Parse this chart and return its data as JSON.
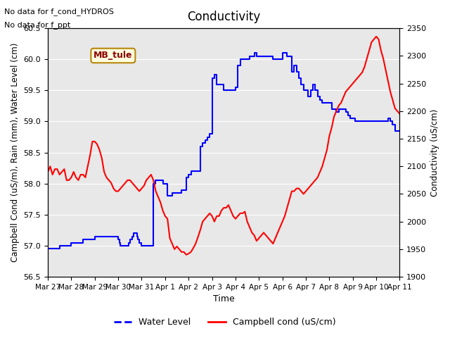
{
  "title": "Conductivity",
  "xlabel": "Time",
  "ylabel_left": "Campbell Cond (uS/m), Rain (mm), Water Level (cm)",
  "ylabel_right": "Conductivity (uS/cm)",
  "ylim_left": [
    56.5,
    60.5
  ],
  "ylim_right": [
    1900,
    2350
  ],
  "annotations": [
    "No data for f_cond_HYDROS",
    "No data for f_ppt"
  ],
  "box_label": "MB_tule",
  "legend_entries": [
    "Water Level",
    "Campbell cond (uS/cm)"
  ],
  "legend_colors": [
    "blue",
    "red"
  ],
  "xtick_labels": [
    "Mar 27",
    "Mar 28",
    "Mar 29",
    "Mar 30",
    "Mar 31",
    "Apr 1",
    "Apr 2",
    "Apr 3",
    "Apr 4",
    "Apr 5",
    "Apr 6",
    "Apr 7",
    "Apr 8",
    "Apr 9",
    "Apr 10",
    "Apr 11"
  ],
  "background_color": "#e8e8e8",
  "water_level_x": [
    0,
    0.5,
    1,
    1.5,
    2,
    2.5,
    2.8,
    3.0,
    3.05,
    3.1,
    3.15,
    3.2,
    3.4,
    3.45,
    3.5,
    3.55,
    3.6,
    3.65,
    3.7,
    3.75,
    3.8,
    3.85,
    3.9,
    4.0,
    4.1,
    4.2,
    4.3,
    4.5,
    4.6,
    4.7,
    4.8,
    4.9,
    5.0,
    5.1,
    5.2,
    5.3,
    5.4,
    5.5,
    5.6,
    5.7,
    5.8,
    5.9,
    6.0,
    6.1,
    6.2,
    6.3,
    6.4,
    6.5,
    6.6,
    6.7,
    6.8,
    6.9,
    7.0,
    7.1,
    7.2,
    7.3,
    7.4,
    7.5,
    7.6,
    7.7,
    7.8,
    7.9,
    8.0,
    8.1,
    8.2,
    8.3,
    8.4,
    8.5,
    8.6,
    8.7,
    8.8,
    8.9,
    9.0,
    9.1,
    9.2,
    9.3,
    9.4,
    9.5,
    9.6,
    9.7,
    9.8,
    9.9,
    10.0,
    10.1,
    10.2,
    10.3,
    10.4,
    10.5,
    10.6,
    10.7,
    10.8,
    10.9,
    11.0,
    11.1,
    11.2,
    11.3,
    11.4,
    11.5,
    11.6,
    11.7,
    11.8,
    11.9,
    12.0,
    12.1,
    12.2,
    12.3,
    12.4,
    12.5,
    12.6,
    12.7,
    12.8,
    12.9,
    13.0,
    13.1,
    13.2,
    13.3,
    13.4,
    13.5,
    13.6,
    13.7,
    13.8,
    13.9,
    14.0,
    14.1,
    14.2,
    14.3,
    14.4,
    14.5,
    14.6,
    14.7,
    14.8,
    14.9,
    15.0
  ],
  "water_level_y": [
    56.95,
    57.0,
    57.05,
    57.1,
    57.15,
    57.15,
    57.15,
    57.1,
    57.05,
    57.0,
    57.0,
    57.0,
    57.0,
    57.05,
    57.1,
    57.1,
    57.15,
    57.2,
    57.2,
    57.2,
    57.15,
    57.1,
    57.05,
    57.0,
    57.0,
    57.0,
    57.0,
    58.0,
    58.05,
    58.05,
    58.05,
    58.0,
    58.0,
    57.8,
    57.8,
    57.85,
    57.85,
    57.85,
    57.85,
    57.9,
    57.9,
    58.1,
    58.15,
    58.2,
    58.2,
    58.2,
    58.2,
    58.6,
    58.65,
    58.7,
    58.75,
    58.8,
    59.7,
    59.75,
    59.6,
    59.6,
    59.6,
    59.5,
    59.5,
    59.5,
    59.5,
    59.5,
    59.55,
    59.9,
    60.0,
    60.0,
    60.0,
    60.0,
    60.05,
    60.05,
    60.1,
    60.05,
    60.05,
    60.05,
    60.05,
    60.05,
    60.05,
    60.05,
    60.0,
    60.0,
    60.0,
    60.0,
    60.1,
    60.1,
    60.05,
    60.05,
    59.8,
    59.9,
    59.8,
    59.7,
    59.6,
    59.5,
    59.5,
    59.4,
    59.5,
    59.6,
    59.5,
    59.4,
    59.35,
    59.3,
    59.3,
    59.3,
    59.3,
    59.2,
    59.2,
    59.15,
    59.2,
    59.2,
    59.2,
    59.15,
    59.1,
    59.05,
    59.05,
    59.0,
    59.0,
    59.0,
    59.0,
    59.0,
    59.0,
    59.0,
    59.0,
    59.0,
    59.0,
    59.0,
    59.0,
    59.0,
    59.0,
    59.05,
    59.0,
    58.95,
    58.85,
    58.85,
    58.85
  ],
  "campbell_x": [
    0,
    0.1,
    0.2,
    0.3,
    0.4,
    0.5,
    0.6,
    0.7,
    0.8,
    0.9,
    1.0,
    1.1,
    1.2,
    1.3,
    1.4,
    1.5,
    1.6,
    1.7,
    1.8,
    1.9,
    2.0,
    2.1,
    2.2,
    2.3,
    2.4,
    2.5,
    2.6,
    2.7,
    2.8,
    2.9,
    3.0,
    3.1,
    3.2,
    3.3,
    3.4,
    3.5,
    3.6,
    3.7,
    3.8,
    3.9,
    4.0,
    4.1,
    4.2,
    4.3,
    4.4,
    4.5,
    4.6,
    4.7,
    4.8,
    4.9,
    5.0,
    5.1,
    5.2,
    5.3,
    5.4,
    5.5,
    5.6,
    5.7,
    5.8,
    5.9,
    6.0,
    6.1,
    6.2,
    6.3,
    6.4,
    6.5,
    6.6,
    6.7,
    6.8,
    6.9,
    7.0,
    7.1,
    7.2,
    7.3,
    7.4,
    7.5,
    7.6,
    7.7,
    7.8,
    7.9,
    8.0,
    8.1,
    8.2,
    8.3,
    8.4,
    8.5,
    8.6,
    8.7,
    8.8,
    8.9,
    9.0,
    9.1,
    9.2,
    9.3,
    9.4,
    9.5,
    9.6,
    9.7,
    9.8,
    9.9,
    10.0,
    10.1,
    10.2,
    10.3,
    10.4,
    10.5,
    10.6,
    10.7,
    10.8,
    10.9,
    11.0,
    11.1,
    11.2,
    11.3,
    11.4,
    11.5,
    11.6,
    11.7,
    11.8,
    11.9,
    12.0,
    12.1,
    12.2,
    12.3,
    12.4,
    12.5,
    12.6,
    12.7,
    12.8,
    12.9,
    13.0,
    13.1,
    13.2,
    13.3,
    13.4,
    13.5,
    13.6,
    13.7,
    13.8,
    13.9,
    14.0,
    14.1,
    14.2,
    14.3,
    14.4,
    14.5,
    14.6,
    14.7,
    14.8,
    14.9,
    15.0
  ],
  "campbell_y": [
    2090,
    2100,
    2085,
    2095,
    2095,
    2085,
    2090,
    2095,
    2075,
    2075,
    2080,
    2090,
    2080,
    2075,
    2085,
    2085,
    2080,
    2100,
    2120,
    2145,
    2145,
    2140,
    2130,
    2115,
    2090,
    2080,
    2075,
    2070,
    2060,
    2055,
    2055,
    2060,
    2065,
    2070,
    2075,
    2075,
    2070,
    2065,
    2060,
    2055,
    2060,
    2065,
    2075,
    2080,
    2085,
    2075,
    2055,
    2045,
    2035,
    2020,
    2010,
    2005,
    1970,
    1960,
    1950,
    1955,
    1950,
    1945,
    1945,
    1940,
    1942,
    1945,
    1952,
    1960,
    1972,
    1985,
    2000,
    2005,
    2010,
    2015,
    2010,
    2000,
    2010,
    2010,
    2020,
    2025,
    2025,
    2030,
    2020,
    2010,
    2005,
    2010,
    2015,
    2015,
    2018,
    2000,
    1990,
    1980,
    1975,
    1965,
    1970,
    1975,
    1980,
    1975,
    1970,
    1965,
    1960,
    1970,
    1980,
    1990,
    2000,
    2010,
    2025,
    2040,
    2055,
    2055,
    2060,
    2060,
    2055,
    2050,
    2055,
    2060,
    2065,
    2070,
    2075,
    2080,
    2090,
    2100,
    2115,
    2130,
    2155,
    2170,
    2190,
    2200,
    2210,
    2215,
    2225,
    2235,
    2240,
    2245,
    2250,
    2255,
    2260,
    2265,
    2270,
    2280,
    2295,
    2310,
    2325,
    2330,
    2335,
    2330,
    2310,
    2295,
    2275,
    2255,
    2235,
    2220,
    2205,
    2200,
    2195
  ]
}
